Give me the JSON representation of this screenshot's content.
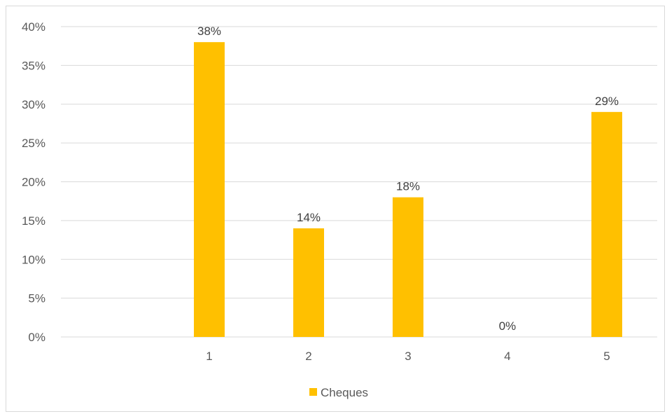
{
  "chart_data": {
    "type": "bar",
    "title": "",
    "xlabel": "",
    "ylabel": "",
    "categories": [
      "1",
      "2",
      "3",
      "4",
      "5"
    ],
    "series": [
      {
        "name": "Cheques",
        "values": [
          38,
          14,
          18,
          0,
          29
        ],
        "data_labels": [
          "38%",
          "14%",
          "18%",
          "0%",
          "29%"
        ],
        "color": "#FFC000"
      }
    ],
    "ylim": [
      0,
      40
    ],
    "y_ticks": [
      0,
      5,
      10,
      15,
      20,
      25,
      30,
      35,
      40
    ],
    "y_tick_labels": [
      "0%",
      "5%",
      "10%",
      "15%",
      "20%",
      "25%",
      "30%",
      "35%",
      "40%"
    ],
    "grid": true,
    "grid_color": "#d9d9d9",
    "legend": {
      "position": "bottom",
      "entries": [
        "Cheques"
      ]
    }
  }
}
